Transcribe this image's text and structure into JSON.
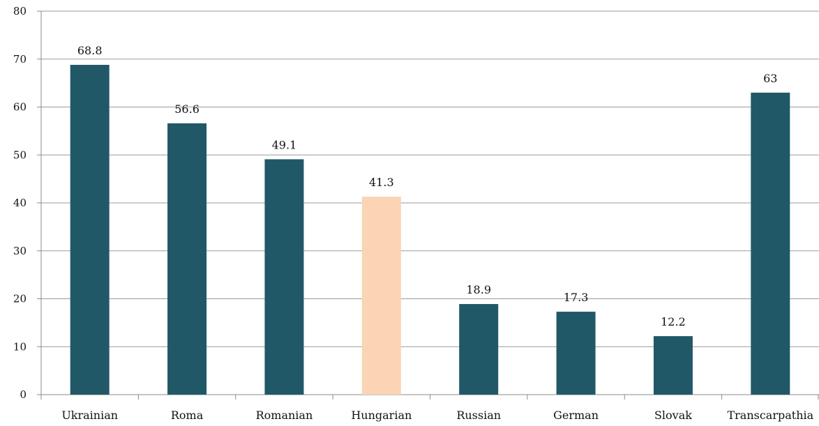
{
  "chart_data": {
    "type": "bar",
    "categories": [
      "Ukrainian",
      "Roma",
      "Romanian",
      "Hungarian",
      "Russian",
      "German",
      "Slovak",
      "Transcarpathia"
    ],
    "values": [
      68.8,
      56.6,
      49.1,
      41.3,
      18.9,
      17.3,
      12.2,
      63
    ],
    "value_labels": [
      "68.8",
      "56.6",
      "49.1",
      "41.3",
      "18.9",
      "17.3",
      "12.2",
      "63"
    ],
    "ylim": [
      0,
      80
    ],
    "yticks": [
      0,
      10,
      20,
      30,
      40,
      50,
      60,
      70,
      80
    ],
    "grid": true,
    "bar_color": "#215868",
    "highlight_color": "#fad4b4",
    "highlight_categories": [
      "Hungarian"
    ]
  }
}
